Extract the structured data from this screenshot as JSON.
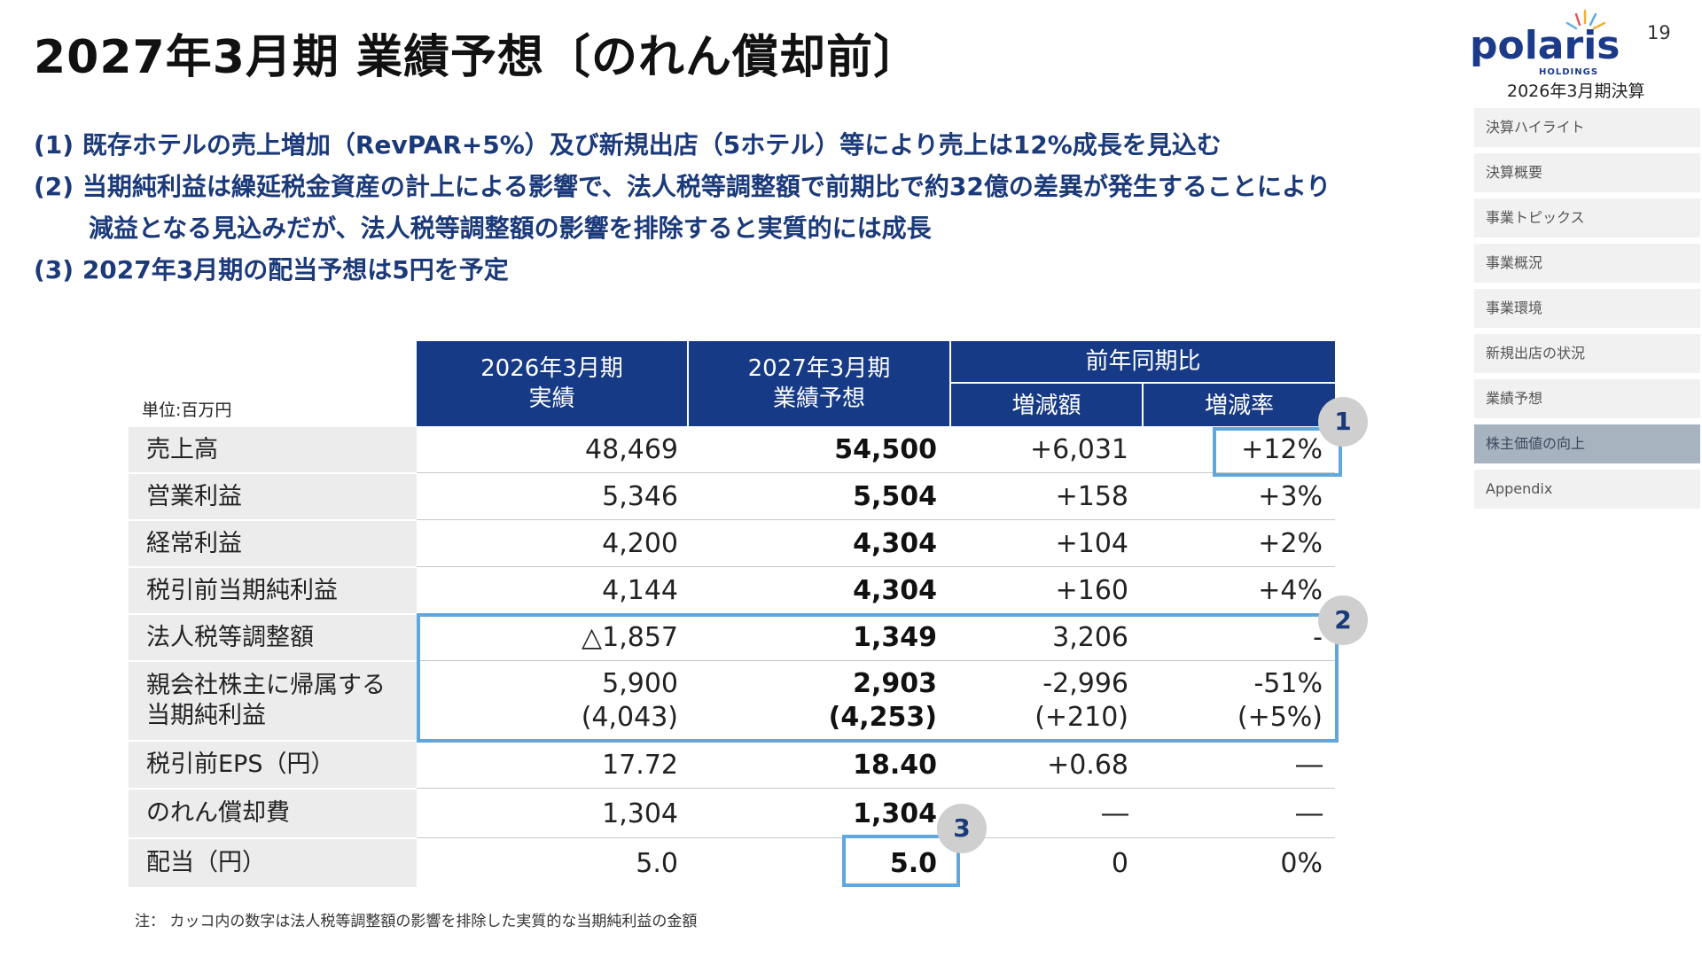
{
  "title": "2027年3月期 業績予想〔のれん償却前〕",
  "page_number": "19",
  "logo": {
    "name": "polaris",
    "sub": "HOLDINGS"
  },
  "report_label": "2026年3月期決算",
  "nav": [
    {
      "label": "決算ハイライト",
      "active": false
    },
    {
      "label": "決算概要",
      "active": false
    },
    {
      "label": "事業トピックス",
      "active": false
    },
    {
      "label": "事業概況",
      "active": false
    },
    {
      "label": "事業環境",
      "active": false
    },
    {
      "label": "新規出店の状況",
      "active": false
    },
    {
      "label": "業績予想",
      "active": false
    },
    {
      "label": "株主価値の向上",
      "active": true
    },
    {
      "label": "Appendix",
      "active": false
    }
  ],
  "bullets": [
    "(1) 既存ホテルの売上増加（RevPAR+5%）及び新規出店（5ホテル）等により売上は12%成長を見込む",
    "(2) 当期純利益は繰延税金資産の計上による影響で、法人税等調整額で前期比で約32億の差異が発生することにより",
    "減益となる見込みだが、法人税等調整額の影響を排除すると実質的には成長",
    "(3) 2027年3月期の配当予想は5円を予定"
  ],
  "table": {
    "unit": "単位:百万円",
    "headers": {
      "col1_line1": "2026年3月期",
      "col1_line2": "実績",
      "col2_line1": "2027年3月期",
      "col2_line2": "業績予想",
      "group": "前年同期比",
      "col3": "増減額",
      "col4": "増減率"
    },
    "rows": [
      {
        "label": "売上高",
        "actual": "48,469",
        "forecast": "54,500",
        "diff": "+6,031",
        "rate": "+12%"
      },
      {
        "label": "営業利益",
        "actual": "5,346",
        "forecast": "5,504",
        "diff": "+158",
        "rate": "+3%"
      },
      {
        "label": "経常利益",
        "actual": "4,200",
        "forecast": "4,304",
        "diff": "+104",
        "rate": "+2%"
      },
      {
        "label": "税引前当期純利益",
        "actual": "4,144",
        "forecast": "4,304",
        "diff": "+160",
        "rate": "+4%"
      },
      {
        "label": "法人税等調整額",
        "actual": "△1,857",
        "forecast": "1,349",
        "diff": "3,206",
        "rate": "-"
      },
      {
        "label": "親会社株主に帰属する",
        "label2": "当期純利益",
        "actual": "5,900",
        "actual2": "(4,043)",
        "forecast": "2,903",
        "forecast2": "(4,253)",
        "diff": "-2,996",
        "diff2": "(+210)",
        "rate": "-51%",
        "rate2": "(+5%)"
      },
      {
        "label": "税引前EPS（円）",
        "actual": "17.72",
        "forecast": "18.40",
        "diff": "+0.68",
        "rate": "―"
      },
      {
        "label": "のれん償却費",
        "actual": "1,304",
        "forecast": "1,304",
        "diff": "―",
        "rate": "―"
      },
      {
        "label": "配当（円）",
        "actual": "5.0",
        "forecast": "5.0",
        "diff": "0",
        "rate": "0%"
      }
    ]
  },
  "badges": [
    "1",
    "2",
    "3"
  ],
  "note": "注： カッコ内の数字は法人税等調整額の影響を排除した実質的な当期純利益の金額",
  "colors": {
    "header_blue": "#163a86",
    "text_blue": "#1b3a7a",
    "highlight": "#5fa7dc"
  }
}
